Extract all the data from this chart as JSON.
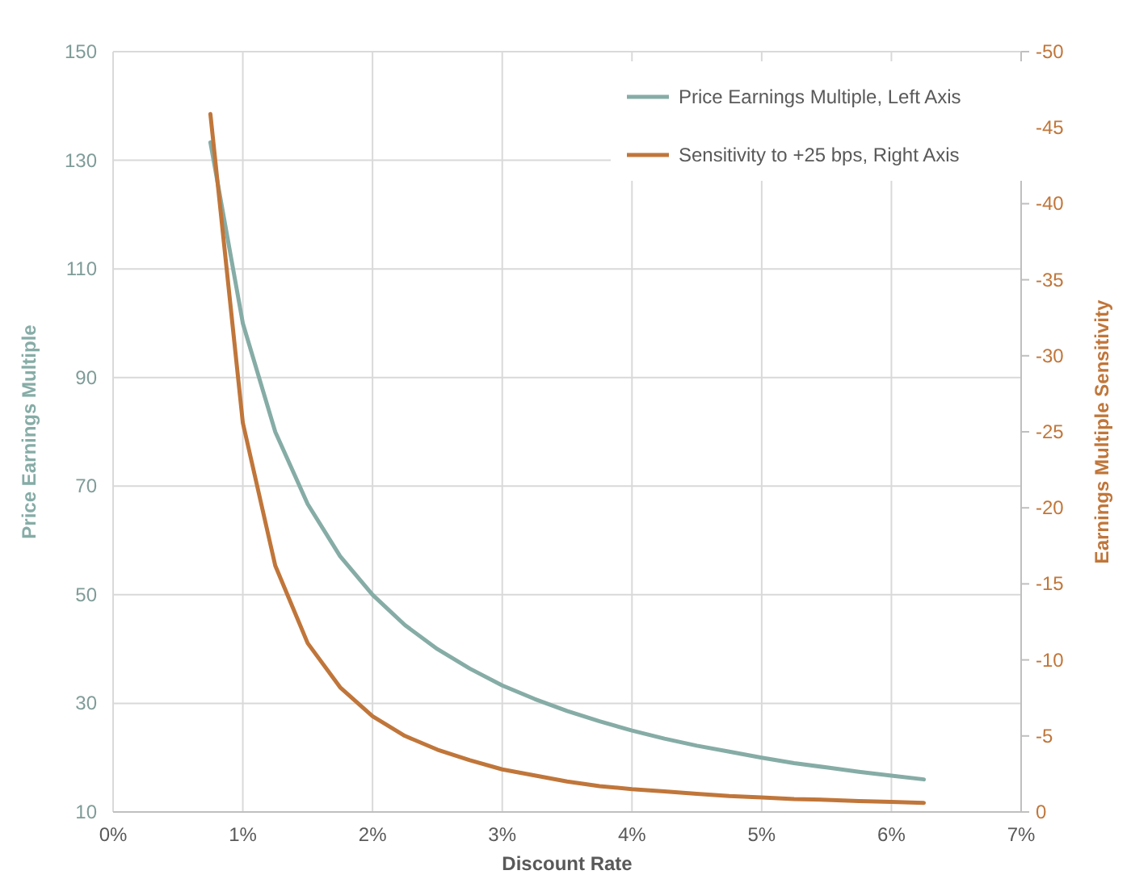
{
  "chart_data": {
    "type": "line",
    "xlabel": "Discount Rate",
    "ylabel": "Price Earnings Multiple",
    "y2label": "Earnings Multiple Sensitivity",
    "x": [
      0.75,
      1,
      1.25,
      1.5,
      1.75,
      2,
      2.25,
      2.5,
      2.75,
      3,
      3.25,
      3.5,
      3.75,
      4,
      4.25,
      4.5,
      4.75,
      5,
      5.25,
      5.5,
      5.75,
      6,
      6.25
    ],
    "series": [
      {
        "name": "Price Earnings Multiple, Left Axis",
        "color": "#86aca6",
        "values": [
          133.3,
          100,
          80,
          66.7,
          57.1,
          50,
          44.4,
          40,
          36.4,
          33.3,
          30.8,
          28.6,
          26.7,
          25,
          23.5,
          22.2,
          21.1,
          20,
          19,
          18.2,
          17.4,
          16.7,
          16
        ]
      },
      {
        "name": "Sensitivity to +25 bps, Right Axis",
        "color": "#c0763a",
        "axis": "y2",
        "values": [
          -45.9,
          -25.6,
          -16.2,
          -11.1,
          -8.2,
          -6.3,
          -5,
          -4.1,
          -3.4,
          -2.8,
          -2.4,
          -2,
          -1.7,
          -1.5,
          -1.35,
          -1.2,
          -1.05,
          -0.95,
          -0.85,
          -0.8,
          -0.72,
          -0.66,
          -0.6
        ]
      }
    ],
    "xlim": [
      0,
      7
    ],
    "xticks": [
      {
        "value": 0,
        "label": "0%"
      },
      {
        "value": 1,
        "label": "1%"
      },
      {
        "value": 2,
        "label": "2%"
      },
      {
        "value": 3,
        "label": "3%"
      },
      {
        "value": 4,
        "label": "4%"
      },
      {
        "value": 5,
        "label": "5%"
      },
      {
        "value": 6,
        "label": "6%"
      },
      {
        "value": 7,
        "label": "7%"
      }
    ],
    "ylim": [
      10,
      150
    ],
    "yticks": [
      10,
      30,
      50,
      70,
      90,
      110,
      130,
      150
    ],
    "y2lim": [
      0,
      -50
    ],
    "y2ticks": [
      0,
      -5,
      -10,
      -15,
      -20,
      -25,
      -30,
      -35,
      -40,
      -45,
      -50
    ],
    "grid": true,
    "legend": "top right"
  }
}
